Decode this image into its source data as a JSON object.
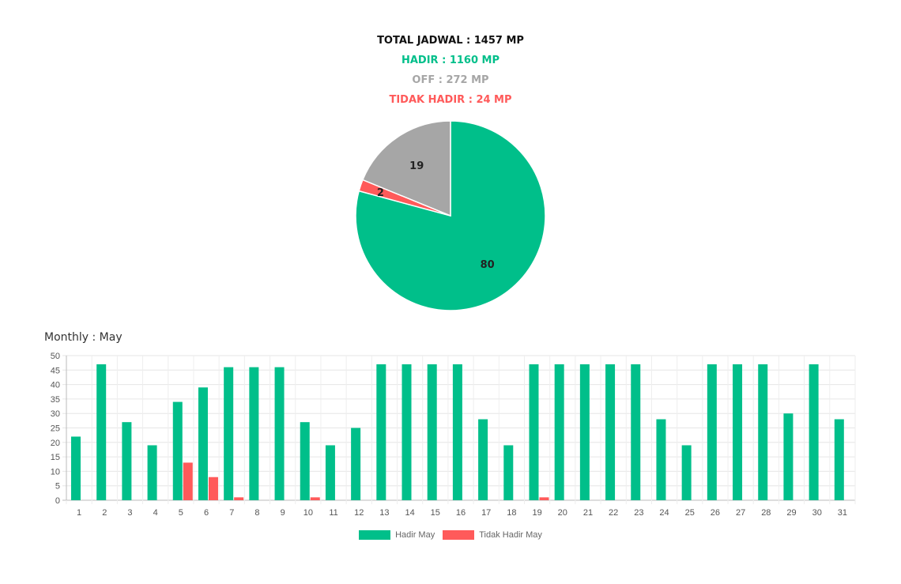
{
  "summary": {
    "total": "TOTAL JADWAL : 1457 MP",
    "hadir": "HADIR : 1160 MP",
    "off": "OFF : 272 MP",
    "tidak_hadir": "TIDAK HADIR : 24 MP"
  },
  "colors": {
    "hadir": "#00BF8A",
    "off": "#A6A6A6",
    "tidak_hadir": "#FF5A5A",
    "total": "#111111"
  },
  "chart_data": [
    {
      "type": "pie",
      "slices": [
        {
          "label": "80",
          "value": 80,
          "color": "#00BF8A"
        },
        {
          "label": "2",
          "value": 2,
          "color": "#FF5A5A"
        },
        {
          "label": "19",
          "value": 19,
          "color": "#A6A6A6"
        }
      ]
    },
    {
      "type": "bar",
      "title": "Monthly : May",
      "categories": [
        "1",
        "2",
        "3",
        "4",
        "5",
        "6",
        "7",
        "8",
        "9",
        "10",
        "11",
        "12",
        "13",
        "14",
        "15",
        "16",
        "17",
        "18",
        "19",
        "20",
        "21",
        "22",
        "23",
        "24",
        "25",
        "26",
        "27",
        "28",
        "29",
        "30",
        "31"
      ],
      "series": [
        {
          "name": "Hadir May",
          "color": "#00BF8A",
          "values": [
            22,
            47,
            27,
            19,
            34,
            39,
            46,
            46,
            46,
            27,
            19,
            25,
            47,
            47,
            47,
            47,
            28,
            19,
            47,
            47,
            47,
            47,
            47,
            28,
            19,
            47,
            47,
            47,
            30,
            47,
            28
          ]
        },
        {
          "name": "Tidak Hadir May",
          "color": "#FF5A5A",
          "values": [
            0,
            0,
            0,
            0,
            13,
            8,
            1,
            0,
            0,
            1,
            0,
            0,
            0,
            0,
            0,
            0,
            0,
            0,
            1,
            0,
            0,
            0,
            0,
            0,
            0,
            0,
            0,
            0,
            0,
            0,
            0
          ]
        }
      ],
      "ylim": [
        0,
        50
      ],
      "yticks": [
        0,
        5,
        10,
        15,
        20,
        25,
        30,
        35,
        40,
        45,
        50
      ],
      "grid": true,
      "legend": "bottom-center"
    }
  ]
}
